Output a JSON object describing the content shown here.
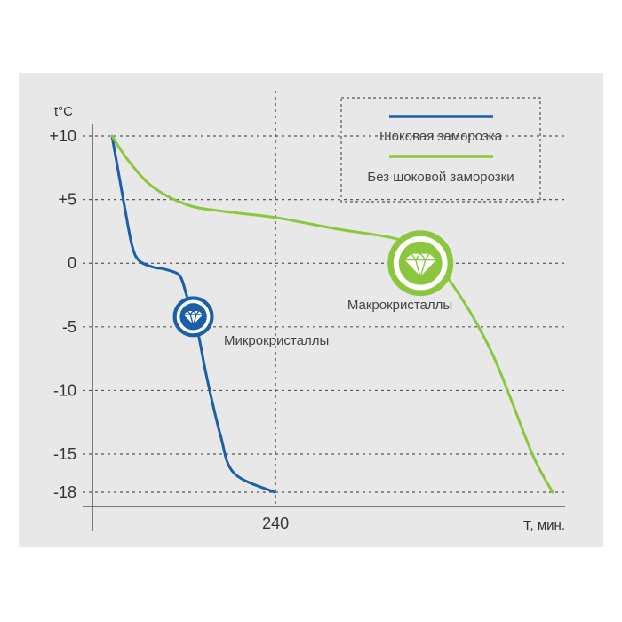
{
  "chart_data": {
    "type": "line",
    "title": "",
    "xlabel": "T, мин.",
    "ylabel": "t°C",
    "ylim": [
      -18,
      10
    ],
    "y_ticks": [
      {
        "value": 10,
        "label": "+10"
      },
      {
        "value": 5,
        "label": "+5"
      },
      {
        "value": 0,
        "label": "0"
      },
      {
        "value": -5,
        "label": "-5"
      },
      {
        "value": -10,
        "label": "-10"
      },
      {
        "value": -15,
        "label": "-15"
      },
      {
        "value": -18,
        "label": "-18"
      }
    ],
    "x_ticks": [
      {
        "value": 240,
        "label": "240"
      }
    ],
    "grid": true,
    "legend_position": "top-right",
    "series": [
      {
        "name": "Шоковая заморозка",
        "color": "#1a5fa8",
        "points": [
          [
            0,
            10
          ],
          [
            10,
            7
          ],
          [
            20,
            4
          ],
          [
            30,
            1.3
          ],
          [
            40,
            0.2
          ],
          [
            60,
            -0.3
          ],
          [
            80,
            -0.5
          ],
          [
            100,
            -1
          ],
          [
            110,
            -2.5
          ],
          [
            125,
            -5
          ],
          [
            140,
            -9
          ],
          [
            160,
            -13.5
          ],
          [
            180,
            -16.5
          ],
          [
            240,
            -18
          ]
        ]
      },
      {
        "name": "Без шоковой заморозки",
        "color": "#8cc63f",
        "points": [
          [
            0,
            10
          ],
          [
            25,
            8
          ],
          [
            60,
            6
          ],
          [
            110,
            4.6
          ],
          [
            160,
            4.1
          ],
          [
            240,
            3.6
          ],
          [
            330,
            2.7
          ],
          [
            420,
            1.9
          ],
          [
            460,
            0.7
          ],
          [
            500,
            -1.5
          ],
          [
            560,
            -7
          ],
          [
            620,
            -15
          ],
          [
            650,
            -18
          ]
        ]
      }
    ],
    "annotations": [
      {
        "text": "Микрокристаллы",
        "series": 0,
        "x": 120,
        "y": -4.2,
        "icon": "crystal-icon"
      },
      {
        "text": "Макрокристаллы",
        "series": 1,
        "x": 455,
        "y": 0,
        "icon": "crystal-icon"
      }
    ]
  }
}
